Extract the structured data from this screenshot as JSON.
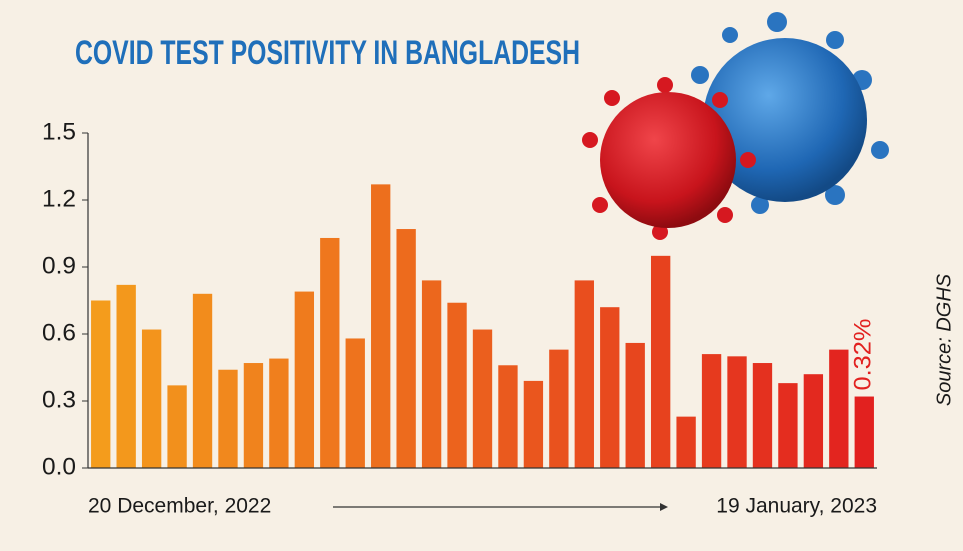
{
  "chart_data": {
    "type": "bar",
    "title": "COVID TEST POSITIVITY IN BANGLADESH",
    "categories": [
      "20 December, 2022",
      null,
      null,
      null,
      null,
      null,
      null,
      null,
      null,
      null,
      null,
      null,
      null,
      null,
      null,
      null,
      null,
      null,
      null,
      null,
      null,
      null,
      null,
      null,
      null,
      null,
      null,
      null,
      null,
      null,
      "19 January, 2023"
    ],
    "values": [
      0.75,
      0.82,
      0.62,
      0.37,
      0.78,
      0.44,
      0.47,
      0.49,
      0.79,
      1.03,
      0.58,
      1.27,
      1.07,
      0.84,
      0.74,
      0.62,
      0.46,
      0.39,
      0.53,
      0.84,
      0.72,
      0.56,
      0.95,
      0.23,
      0.51,
      0.5,
      0.47,
      0.38,
      0.42,
      0.53,
      0.32
    ],
    "value_labels": [
      null,
      null,
      null,
      null,
      null,
      null,
      null,
      null,
      null,
      null,
      null,
      null,
      null,
      null,
      null,
      null,
      null,
      null,
      null,
      null,
      null,
      null,
      null,
      null,
      null,
      null,
      null,
      null,
      null,
      null,
      "0.32%"
    ],
    "gradient": [
      "#f49c1c",
      "#e2211f"
    ],
    "ylim": [
      0,
      1.5
    ],
    "yticks": [
      {
        "value": 0,
        "label": "0.0"
      },
      0.3,
      0.6,
      0.9,
      1.2,
      1.5
    ],
    "source": "Source: DGHS"
  }
}
